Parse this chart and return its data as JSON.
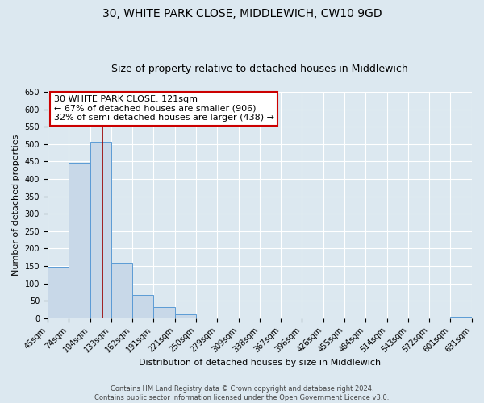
{
  "title": "30, WHITE PARK CLOSE, MIDDLEWICH, CW10 9GD",
  "subtitle": "Size of property relative to detached houses in Middlewich",
  "xlabel": "Distribution of detached houses by size in Middlewich",
  "ylabel": "Number of detached properties",
  "bin_edges": [
    45,
    74,
    104,
    133,
    162,
    191,
    221,
    250,
    279,
    309,
    338,
    367,
    396,
    426,
    455,
    484,
    514,
    543,
    572,
    601,
    631
  ],
  "bar_heights": [
    148,
    447,
    507,
    158,
    66,
    32,
    12,
    0,
    0,
    0,
    0,
    0,
    2,
    0,
    0,
    0,
    0,
    0,
    0,
    3
  ],
  "bar_color": "#c8d8e8",
  "bar_edge_color": "#5b9bd5",
  "vline_x": 121,
  "vline_color": "#990000",
  "ylim": [
    0,
    650
  ],
  "yticks": [
    0,
    50,
    100,
    150,
    200,
    250,
    300,
    350,
    400,
    450,
    500,
    550,
    600,
    650
  ],
  "annotation_title": "30 WHITE PARK CLOSE: 121sqm",
  "annotation_line1": "← 67% of detached houses are smaller (906)",
  "annotation_line2": "32% of semi-detached houses are larger (438) →",
  "annotation_box_color": "#ffffff",
  "annotation_box_edge_color": "#cc0000",
  "footer_line1": "Contains HM Land Registry data © Crown copyright and database right 2024.",
  "footer_line2": "Contains public sector information licensed under the Open Government Licence v3.0.",
  "background_color": "#dce8f0",
  "plot_bg_color": "#dce8f0",
  "grid_color": "#ffffff",
  "title_fontsize": 10,
  "subtitle_fontsize": 9,
  "ylabel_fontsize": 8,
  "xlabel_fontsize": 8,
  "tick_fontsize": 7,
  "footer_fontsize": 6,
  "annot_fontsize": 8
}
